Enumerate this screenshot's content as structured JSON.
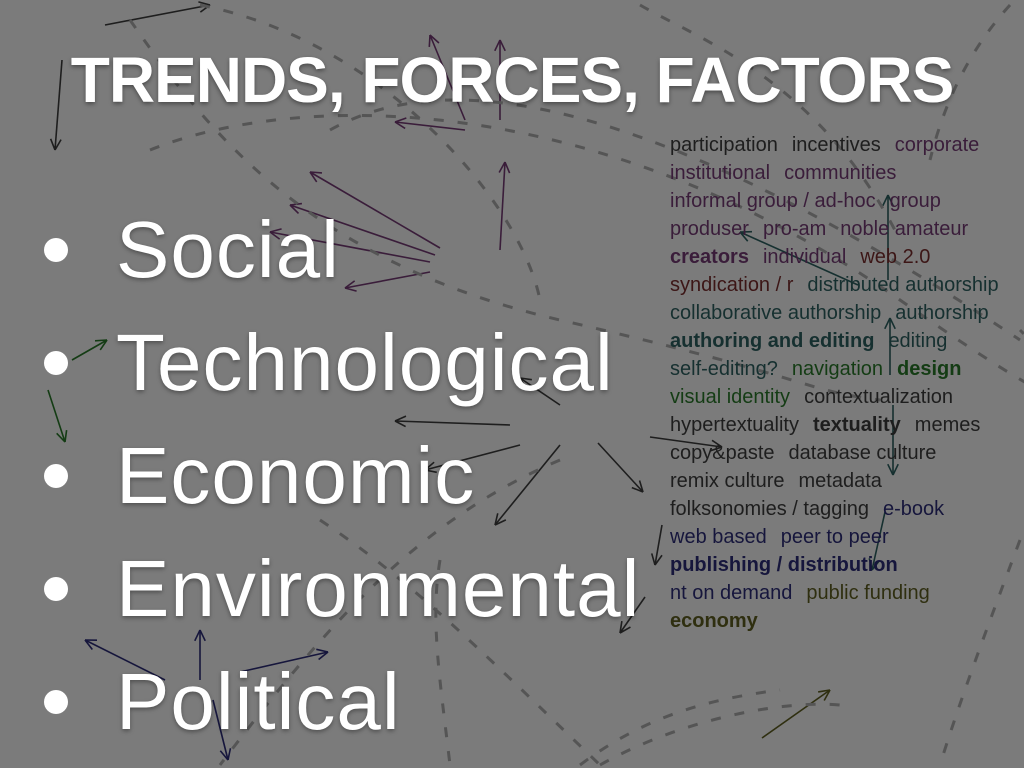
{
  "slide": {
    "title": "TRENDS, FORCES, FACTORS",
    "bullets": [
      "Social",
      "Technological",
      "Economic",
      "Environmental",
      "Political"
    ]
  },
  "background_diagram": {
    "labels": [
      "participation",
      "incentives",
      "corporate",
      "institutional",
      "communities",
      "informal group / ad-hoc",
      "group",
      "produser",
      "pro-am",
      "noble amateur",
      "creators",
      "individual",
      "web 2.0",
      "syndication / r",
      "distributed authorship",
      "collaborative authorship",
      "authorship",
      "authoring and editing",
      "editing",
      "self-editing?",
      "navigation",
      "design",
      "visual identity",
      "contextualization",
      "hypertextuality",
      "textuality",
      "memes",
      "copy&paste",
      "database culture",
      "remix culture",
      "metadata",
      "folksonomies / tagging",
      "e-book",
      "web based",
      "peer to peer",
      "publishing / distribution",
      "nt on demand",
      "public funding",
      "economy"
    ],
    "colors": {
      "background": "#7b7b7b",
      "black": "#1e1e1e",
      "purple": "#3a1d3a",
      "maroon": "#3c1616",
      "teal": "#163030",
      "green": "#143c14",
      "navy": "#16163c",
      "olive": "#2f2f10",
      "text": "#ffffff"
    }
  }
}
